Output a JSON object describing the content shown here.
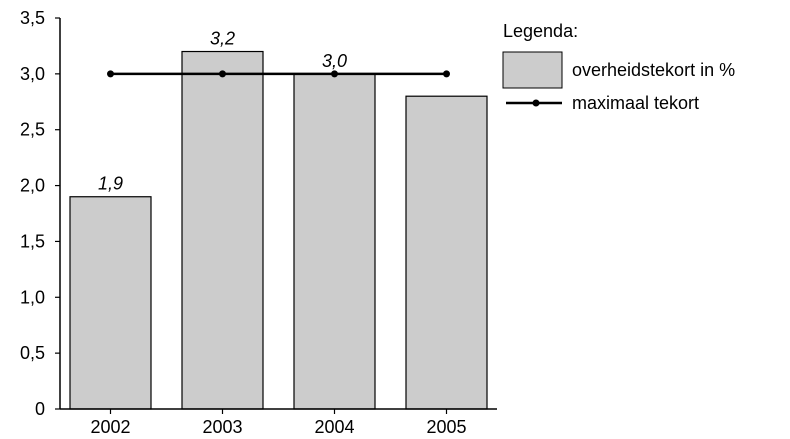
{
  "chart_data": {
    "type": "bar",
    "categories": [
      "2002",
      "2003",
      "2004",
      "2005"
    ],
    "series": [
      {
        "name": "overheidstekort in %",
        "type": "bar",
        "values": [
          1.9,
          3.2,
          3.0,
          2.8
        ],
        "data_labels": [
          "1,9",
          "3,2",
          "3,0",
          ""
        ]
      },
      {
        "name": "maximaal tekort",
        "type": "line",
        "values": [
          3.0,
          3.0,
          3.0,
          3.0
        ]
      }
    ],
    "ylim": [
      0,
      3.5
    ],
    "y_ticks": [
      0,
      0.5,
      1.0,
      1.5,
      2.0,
      2.5,
      3.0,
      3.5
    ],
    "y_tick_labels": [
      "0",
      "0,5",
      "1,0",
      "1,5",
      "2,0",
      "2,5",
      "3,0",
      "3,5"
    ],
    "title": "",
    "xlabel": "",
    "ylabel": "",
    "legend": {
      "title": "Legenda:",
      "position": "top-right"
    },
    "grid": false,
    "colors": {
      "bar_fill": "#cccccc",
      "bar_stroke": "#000000",
      "line": "#000000"
    }
  }
}
